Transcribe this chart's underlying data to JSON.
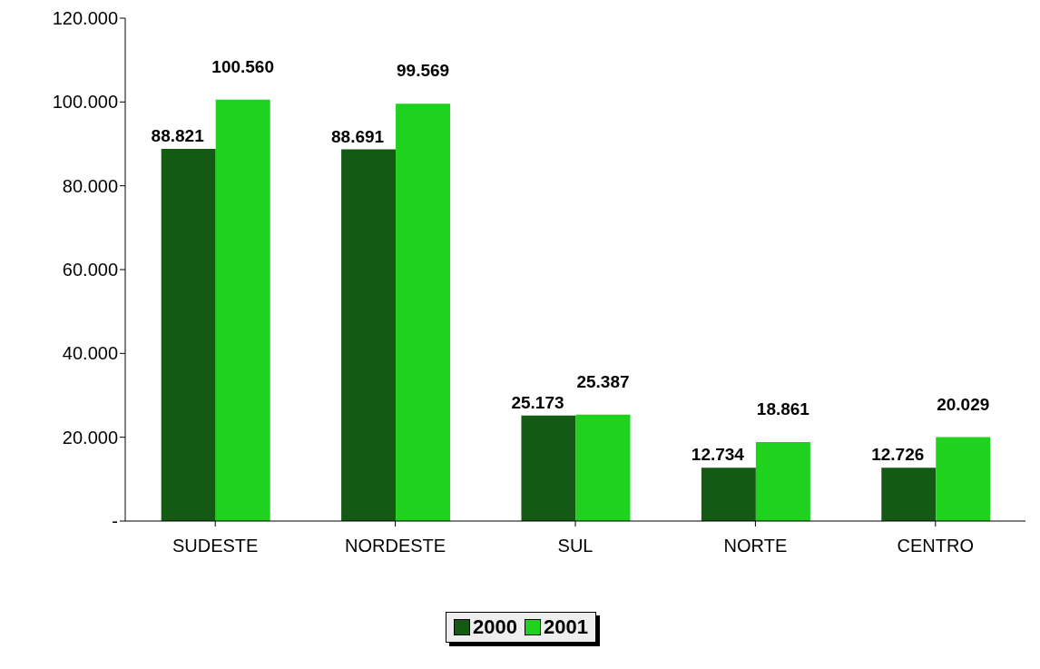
{
  "chart_data": {
    "type": "bar",
    "categories": [
      "SUDESTE",
      "NORDESTE",
      "SUL",
      "NORTE",
      "CENTRO"
    ],
    "series": [
      {
        "name": "2000",
        "color": "#145a14",
        "values": [
          88821,
          88691,
          25173,
          12734,
          12726
        ],
        "value_labels": [
          "88.821",
          "88.691",
          "25.173",
          "12.734",
          "12.726"
        ]
      },
      {
        "name": "2001",
        "color": "#1ed21e",
        "values": [
          100560,
          99569,
          25387,
          18861,
          20029
        ],
        "value_labels": [
          "100.560",
          "99.569",
          "25.387",
          "18.861",
          "20.029"
        ]
      }
    ],
    "ylim": [
      0,
      120000
    ],
    "yticks": [
      {
        "value": 0,
        "label": "-"
      },
      {
        "value": 20000,
        "label": "20.000"
      },
      {
        "value": 40000,
        "label": "40.000"
      },
      {
        "value": 60000,
        "label": "60.000"
      },
      {
        "value": 80000,
        "label": "80.000"
      },
      {
        "value": 100000,
        "label": "100.000"
      },
      {
        "value": 120000,
        "label": "120.000"
      }
    ],
    "grid": false,
    "legend": "bottom"
  }
}
